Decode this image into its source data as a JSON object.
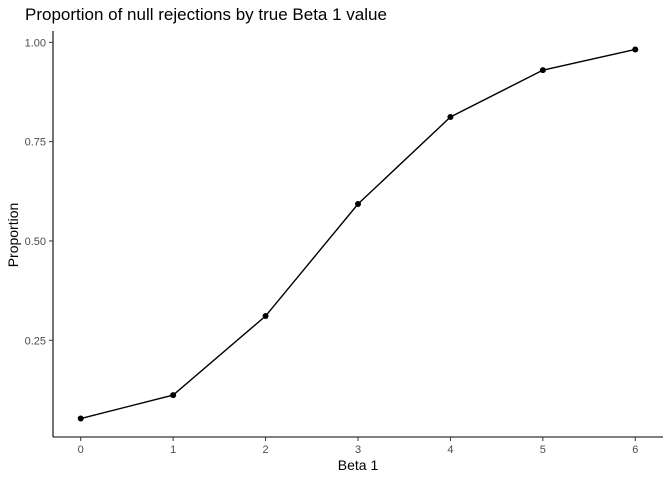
{
  "chart_data": {
    "type": "line",
    "title": "Proportion of null rejections by true Beta 1 value",
    "xlabel": "Beta 1",
    "ylabel": "Proportion",
    "x": [
      0,
      1,
      2,
      3,
      4,
      5,
      6
    ],
    "y": [
      0.053,
      0.112,
      0.311,
      0.593,
      0.812,
      0.93,
      0.982
    ],
    "x_ticks": [
      "0",
      "1",
      "2",
      "3",
      "4",
      "5",
      "6"
    ],
    "y_ticks": [
      "0.25",
      "0.50",
      "0.75",
      "1.00"
    ],
    "xlim": [
      -0.3,
      6.3
    ],
    "ylim": [
      0.0065,
      1.0285
    ],
    "grid": false,
    "line_color": "#000000",
    "point_color": "#000000"
  }
}
